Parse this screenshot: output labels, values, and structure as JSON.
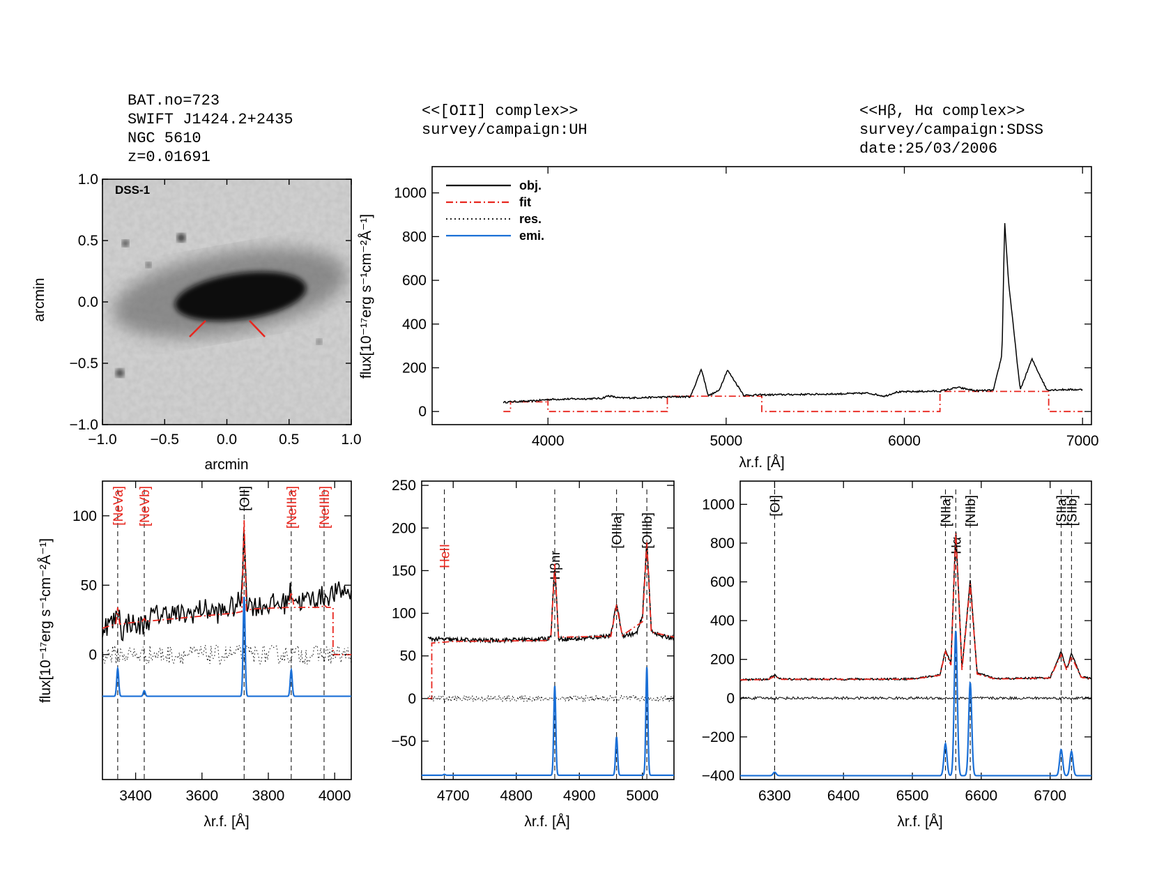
{
  "header_left": {
    "bat_no": "BAT.no=723",
    "swift": "SWIFT J1424.2+2435",
    "ngc": "NGC 5610",
    "z": "z=0.01691"
  },
  "header_mid": {
    "complex": "<<[OII] complex>>",
    "survey": "survey/campaign:UH"
  },
  "header_right": {
    "complex": "<<Hβ, Hα complex>>",
    "survey": "survey/campaign:SDSS",
    "date": "date:25/03/2006"
  },
  "image_panel": {
    "label": "DSS-1",
    "xlabel": "arcmin",
    "ylabel": "arcmin",
    "ticks": [
      "−1.0",
      "−0.5",
      "0.0",
      "0.5",
      "1.0"
    ]
  },
  "flux_label": "flux[10⁻¹⁷erg s⁻¹cm⁻²Å⁻¹]",
  "wavelength_label": "λr.f. [Å]",
  "colors": {
    "obj": "#000000",
    "fit": "#e8261e",
    "res": "#000000",
    "emi": "#1a6fd6"
  },
  "chart_data": [
    {
      "type": "line",
      "panel": "full spectrum",
      "xlim": [
        3350,
        7050
      ],
      "ylim": [
        -60,
        1120
      ],
      "xticks": [
        4000,
        5000,
        6000,
        7000
      ],
      "yticks": [
        0,
        200,
        400,
        600,
        800,
        1000
      ],
      "legend_position": "top-left",
      "series": [
        {
          "name": "obj.",
          "style": "solid",
          "color": "#000000"
        },
        {
          "name": "fit",
          "style": "dash-dot",
          "color": "#e8261e"
        },
        {
          "name": "res.",
          "style": "dotted",
          "color": "#000000"
        },
        {
          "name": "emi.",
          "style": "solid",
          "color": "#1a6fd6"
        }
      ],
      "obj": {
        "x": [
          3750,
          3800,
          3900,
          4000,
          4100,
          4200,
          4300,
          4340,
          4400,
          4500,
          4600,
          4700,
          4800,
          4861,
          4900,
          4959,
          5007,
          5100,
          5200,
          5300,
          5400,
          5500,
          5600,
          5700,
          5800,
          5890,
          5950,
          6000,
          6100,
          6200,
          6300,
          6400,
          6500,
          6548,
          6563,
          6584,
          6650,
          6716,
          6731,
          6800,
          6900,
          7000
        ],
        "y": [
          42,
          45,
          47,
          55,
          57,
          58,
          60,
          72,
          62,
          63,
          65,
          67,
          68,
          195,
          72,
          95,
          190,
          74,
          76,
          77,
          78,
          79,
          80,
          82,
          84,
          70,
          88,
          90,
          92,
          93,
          110,
          95,
          97,
          260,
          870,
          600,
          98,
          240,
          215,
          99,
          100,
          100
        ]
      },
      "fit_continuum_steps": {
        "x": [
          3750,
          3790,
          3790,
          3990,
          3990,
          4000,
          4000,
          4670,
          4670,
          5200,
          5200,
          6200,
          6200,
          6810,
          6810,
          7000
        ],
        "y": [
          0,
          0,
          44,
          44,
          55,
          55,
          0,
          0,
          70,
          70,
          0,
          0,
          92,
          92,
          0,
          0
        ]
      }
    },
    {
      "type": "line",
      "panel": "[OII] complex",
      "xlim": [
        3300,
        4050
      ],
      "ylim": [
        -90,
        125
      ],
      "xticks": [
        3400,
        3600,
        3800,
        4000
      ],
      "yticks": [
        0,
        50,
        100
      ],
      "lines": [
        {
          "label": "[NeVa]",
          "x": 3346,
          "color": "#e8261e"
        },
        {
          "label": "[NeVb]",
          "x": 3426,
          "color": "#e8261e"
        },
        {
          "label": "[OII]",
          "x": 3727,
          "color": "#000000"
        },
        {
          "label": "[NeIIIa]",
          "x": 3869,
          "color": "#e8261e"
        },
        {
          "label": "[NeIIIb]",
          "x": 3968,
          "color": "#e8261e"
        }
      ],
      "obj": {
        "x": [
          3300,
          3320,
          3340,
          3346,
          3360,
          3380,
          3400,
          3426,
          3450,
          3500,
          3550,
          3600,
          3650,
          3700,
          3720,
          3727,
          3735,
          3760,
          3800,
          3850,
          3869,
          3890,
          3930,
          3968,
          4000,
          4030,
          4050
        ],
        "y": [
          20,
          22,
          25,
          36,
          15,
          25,
          20,
          22,
          28,
          30,
          28,
          33,
          30,
          35,
          40,
          100,
          38,
          35,
          36,
          37,
          46,
          38,
          40,
          42,
          44,
          46,
          45
        ]
      },
      "fit": {
        "x": [
          3300,
          3340,
          3346,
          3352,
          3420,
          3426,
          3432,
          3700,
          3720,
          3727,
          3734,
          3760,
          3860,
          3869,
          3878,
          3960,
          3968,
          3976,
          3995,
          3995,
          4005,
          4005,
          4050
        ],
        "y": [
          19,
          22,
          34,
          22,
          24,
          26,
          24,
          30,
          31,
          97,
          32,
          33,
          34,
          45,
          34,
          34,
          36,
          34,
          34,
          0,
          0,
          0,
          0
        ]
      },
      "emi_baseline": -30,
      "emi_peaks": [
        {
          "x": 3346,
          "height": 20
        },
        {
          "x": 3426,
          "height": 4
        },
        {
          "x": 3727,
          "height": 72
        },
        {
          "x": 3869,
          "height": 19
        }
      ]
    },
    {
      "type": "line",
      "panel": "Hβ complex",
      "xlim": [
        4650,
        5050
      ],
      "ylim": [
        -95,
        255
      ],
      "xticks": [
        4700,
        4800,
        4900,
        5000
      ],
      "yticks": [
        -50,
        0,
        50,
        100,
        150,
        200,
        250
      ],
      "lines": [
        {
          "label": "HeII",
          "x": 4686,
          "color": "#e8261e"
        },
        {
          "label": "Hβnr",
          "x": 4861,
          "color": "#000000"
        },
        {
          "label": "[OIIIa]",
          "x": 4959,
          "color": "#000000"
        },
        {
          "label": "[OIIIb]",
          "x": 5007,
          "color": "#000000"
        }
      ],
      "obj": {
        "x": [
          4660,
          4700,
          4750,
          4800,
          4850,
          4855,
          4861,
          4867,
          4900,
          4950,
          4959,
          4968,
          4990,
          5000,
          5007,
          5014,
          5030,
          5050
        ],
        "y": [
          70,
          69,
          68,
          69,
          70,
          75,
          160,
          70,
          70,
          74,
          112,
          74,
          76,
          95,
          187,
          80,
          73,
          71
        ]
      },
      "fit": {
        "x": [
          4660,
          4666,
          4666,
          4700,
          4850,
          4855,
          4861,
          4867,
          4950,
          4959,
          4968,
          5000,
          5007,
          5014,
          5050
        ],
        "y": [
          0,
          0,
          65,
          67,
          68,
          75,
          158,
          72,
          73,
          110,
          74,
          90,
          183,
          78,
          72
        ]
      },
      "emi_baseline": -90,
      "emi_peaks": [
        {
          "x": 4686,
          "height": 1
        },
        {
          "x": 4861,
          "height": 105
        },
        {
          "x": 4959,
          "height": 45
        },
        {
          "x": 5007,
          "height": 127
        }
      ]
    },
    {
      "type": "line",
      "panel": "Hα complex",
      "xlim": [
        6250,
        6760
      ],
      "ylim": [
        -420,
        1120
      ],
      "xticks": [
        6300,
        6400,
        6500,
        6600,
        6700
      ],
      "yticks": [
        -400,
        -200,
        0,
        200,
        400,
        600,
        800,
        1000
      ],
      "lines": [
        {
          "label": "[OI]",
          "x": 6300,
          "color": "#000000"
        },
        {
          "label": "[NIIa]",
          "x": 6548,
          "color": "#000000"
        },
        {
          "label": "Hα",
          "x": 6563,
          "color": "#000000"
        },
        {
          "label": "[NIIb]",
          "x": 6584,
          "color": "#000000"
        },
        {
          "label": "[SIIa]",
          "x": 6716,
          "color": "#000000"
        },
        {
          "label": "[SIIb]",
          "x": 6731,
          "color": "#000000"
        }
      ],
      "obj": {
        "x": [
          6250,
          6290,
          6300,
          6310,
          6400,
          6500,
          6540,
          6548,
          6556,
          6563,
          6572,
          6584,
          6594,
          6620,
          6700,
          6716,
          6724,
          6731,
          6745,
          6760
        ],
        "y": [
          95,
          97,
          118,
          98,
          98,
          99,
          120,
          250,
          180,
          880,
          150,
          610,
          130,
          100,
          105,
          240,
          150,
          230,
          110,
          100
        ]
      },
      "fit": {
        "x": [
          6250,
          6290,
          6300,
          6310,
          6400,
          6500,
          6540,
          6548,
          6556,
          6563,
          6572,
          6584,
          6594,
          6620,
          6700,
          6716,
          6724,
          6731,
          6745,
          6760
        ],
        "y": [
          94,
          96,
          112,
          97,
          97,
          98,
          118,
          240,
          170,
          850,
          145,
          590,
          125,
          99,
          104,
          225,
          145,
          215,
          108,
          99
        ]
      },
      "emi_baseline": -400,
      "emi_peaks": [
        {
          "x": 6300,
          "height": 18
        },
        {
          "x": 6548,
          "height": 165
        },
        {
          "x": 6563,
          "height": 750
        },
        {
          "x": 6584,
          "height": 480
        },
        {
          "x": 6716,
          "height": 135
        },
        {
          "x": 6731,
          "height": 125
        }
      ]
    }
  ]
}
